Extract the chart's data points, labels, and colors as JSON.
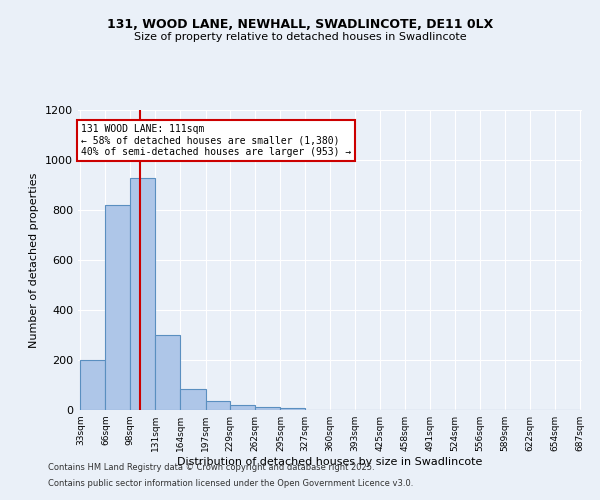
{
  "title1": "131, WOOD LANE, NEWHALL, SWADLINCOTE, DE11 0LX",
  "title2": "Size of property relative to detached houses in Swadlincote",
  "xlabel": "Distribution of detached houses by size in Swadlincote",
  "ylabel": "Number of detached properties",
  "bar_edges": [
    33,
    66,
    98,
    131,
    164,
    197,
    229,
    262,
    295,
    327,
    360,
    393,
    425,
    458,
    491,
    524,
    556,
    589,
    622,
    654,
    687
  ],
  "bar_heights": [
    200,
    820,
    930,
    300,
    85,
    35,
    20,
    12,
    10,
    0,
    0,
    0,
    0,
    0,
    0,
    0,
    0,
    0,
    0,
    0
  ],
  "bar_color": "#aec6e8",
  "bar_edge_color": "#5a8fc0",
  "vline_x": 111,
  "vline_color": "#cc0000",
  "annotation_title": "131 WOOD LANE: 111sqm",
  "annotation_line1": "← 58% of detached houses are smaller (1,380)",
  "annotation_line2": "40% of semi-detached houses are larger (953) →",
  "annotation_box_color": "#ffffff",
  "annotation_box_edge": "#cc0000",
  "ylim": [
    0,
    1200
  ],
  "yticks": [
    0,
    200,
    400,
    600,
    800,
    1000,
    1200
  ],
  "background_color": "#eaf0f8",
  "footer1": "Contains HM Land Registry data © Crown copyright and database right 2025.",
  "footer2": "Contains public sector information licensed under the Open Government Licence v3.0."
}
